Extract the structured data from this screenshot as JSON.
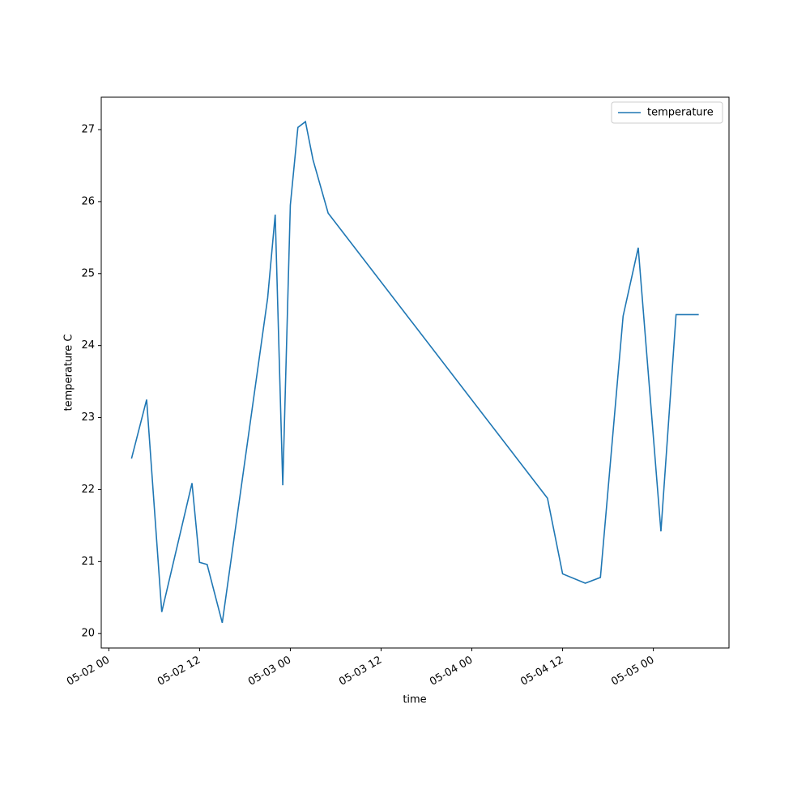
{
  "chart_data": {
    "type": "line",
    "x_label": "time",
    "y_label": "temperature C",
    "x": [
      "05-02 03",
      "05-02 05",
      "05-02 07",
      "05-02 11",
      "05-02 12",
      "05-02 13",
      "05-02 15",
      "05-02 21",
      "05-02 22",
      "05-02 23",
      "05-03 00",
      "05-03 01",
      "05-03 02",
      "05-03 03",
      "05-03 05",
      "05-04 10",
      "05-04 12",
      "05-04 15",
      "05-04 17",
      "05-04 20",
      "05-04 22",
      "05-05 01",
      "05-05 03",
      "05-05 06"
    ],
    "series": [
      {
        "name": "temperature",
        "color": "#1f77b4",
        "values": [
          22.43,
          23.25,
          20.3,
          22.09,
          20.99,
          20.96,
          20.15,
          24.66,
          25.82,
          22.06,
          25.95,
          27.03,
          27.11,
          26.58,
          25.84,
          21.88,
          20.83,
          20.7,
          20.78,
          24.41,
          25.36,
          21.42,
          24.43,
          24.43
        ]
      }
    ],
    "xlim": [
      "05-01 23",
      "05-05 10"
    ],
    "xticks": [
      "05-02 00",
      "05-02 12",
      "05-03 00",
      "05-03 12",
      "05-04 00",
      "05-04 12",
      "05-05 00"
    ],
    "ylim": [
      19.8,
      27.45
    ],
    "yticks": [
      20,
      21,
      22,
      23,
      24,
      25,
      26,
      27
    ],
    "legend": "upper-right"
  }
}
